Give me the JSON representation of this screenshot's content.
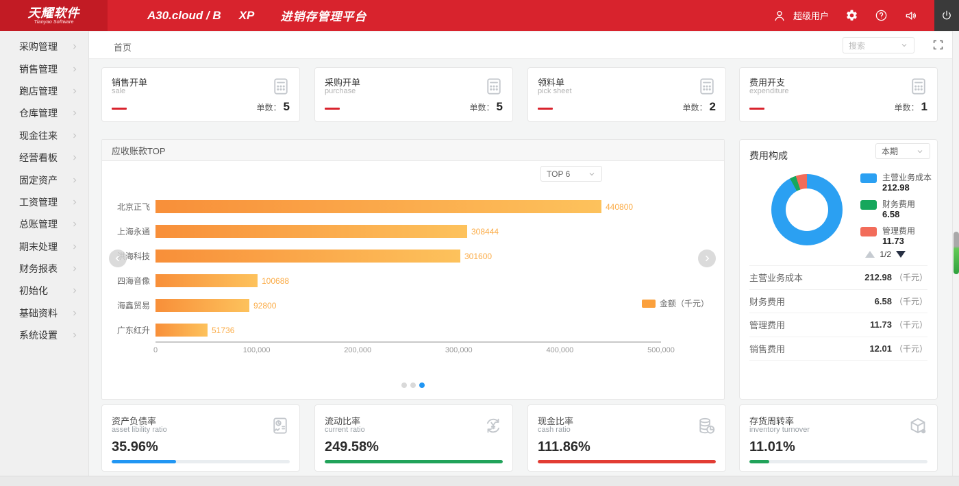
{
  "header": {
    "logo_title": "天耀软件",
    "logo_subtitle": "Tianyao Software",
    "product": "A30.cloud / B",
    "edition": "XP",
    "platform_title": "进销存管理平台",
    "username": "超级用户"
  },
  "sidebar": {
    "items": [
      "采购管理",
      "销售管理",
      "跑店管理",
      "仓库管理",
      "现金往来",
      "经营看板",
      "固定资产",
      "工资管理",
      "总账管理",
      "期末处理",
      "财务报表",
      "初始化",
      "基础资料",
      "系统设置"
    ]
  },
  "breadcrumb": {
    "home": "首页"
  },
  "search": {
    "placeholder": "搜索"
  },
  "stat_cards": [
    {
      "title": "销售开单",
      "subtitle": "sale",
      "count_label": "单数：",
      "count": "5"
    },
    {
      "title": "采购开单",
      "subtitle": "purchase",
      "count_label": "单数：",
      "count": "5"
    },
    {
      "title": "领料单",
      "subtitle": "pick sheet",
      "count_label": "单数：",
      "count": "2"
    },
    {
      "title": "费用开支",
      "subtitle": "expenditure",
      "count_label": "单数：",
      "count": "1"
    }
  ],
  "chart_data": [
    {
      "type": "bar",
      "orientation": "horizontal",
      "title": "应收账款TOP",
      "categories": [
        "北京正飞",
        "上海永通",
        "洪海科技",
        "四海音像",
        "海鑫贸易",
        "广东红升"
      ],
      "values": [
        440800,
        308444,
        301600,
        100688,
        92800,
        51736
      ],
      "series_name": "金额（千元）",
      "xlim": [
        0,
        500000
      ],
      "x_ticks": [
        "0",
        "100,000",
        "200,000",
        "300,000",
        "400,000",
        "500,000"
      ],
      "bar_color_start": "#f88f39",
      "bar_color_end": "#fdc25c",
      "label_color": "#fbab45",
      "legend_position": "right"
    },
    {
      "type": "pie",
      "title": "费用构成",
      "labels": [
        "主营业务成本",
        "财务费用",
        "管理费用"
      ],
      "values": [
        212.98,
        6.58,
        11.73
      ],
      "colors": [
        "#2ba0f2",
        "#16a75c",
        "#f26c5a"
      ],
      "donut": true
    }
  ],
  "receivables_panel": {
    "title": "应收账款TOP",
    "top_select": "TOP 6",
    "legend_label": "金额（千元）",
    "dots": 3,
    "active_dot": 2
  },
  "expense_panel": {
    "title": "费用构成",
    "period_select": "本期",
    "pagination": "1/2",
    "rows": [
      {
        "label": "主营业务成本",
        "value": "212.98",
        "unit": "（千元）"
      },
      {
        "label": "财务费用",
        "value": "6.58",
        "unit": "（千元）"
      },
      {
        "label": "管理费用",
        "value": "11.73",
        "unit": "（千元）"
      },
      {
        "label": "销售费用",
        "value": "12.01",
        "unit": "（千元）"
      }
    ]
  },
  "ratio_cards": [
    {
      "title": "资产负债率",
      "subtitle": "asset libility ratio",
      "value": "35.96%",
      "percent": 36,
      "color": "#2196f3",
      "icon": "report-icon"
    },
    {
      "title": "流动比率",
      "subtitle": "current ratio",
      "value": "249.58%",
      "percent": 100,
      "color": "#21a35a",
      "icon": "refresh-yen-icon"
    },
    {
      "title": "现金比率",
      "subtitle": "cash ratio",
      "value": "111.86%",
      "percent": 100,
      "color": "#e23c33",
      "icon": "coins-icon"
    },
    {
      "title": "存货周转率",
      "subtitle": "inventory turnover",
      "value": "11.01%",
      "percent": 11,
      "color": "#21a35a",
      "icon": "box-icon"
    }
  ],
  "colors": {
    "header_red": "#d8232d",
    "logo_red": "#c21b24",
    "accent_blue": "#2196f3",
    "accent_green": "#21a35a",
    "accent_red": "#e23c33",
    "bar_orange": "#fba03c"
  }
}
